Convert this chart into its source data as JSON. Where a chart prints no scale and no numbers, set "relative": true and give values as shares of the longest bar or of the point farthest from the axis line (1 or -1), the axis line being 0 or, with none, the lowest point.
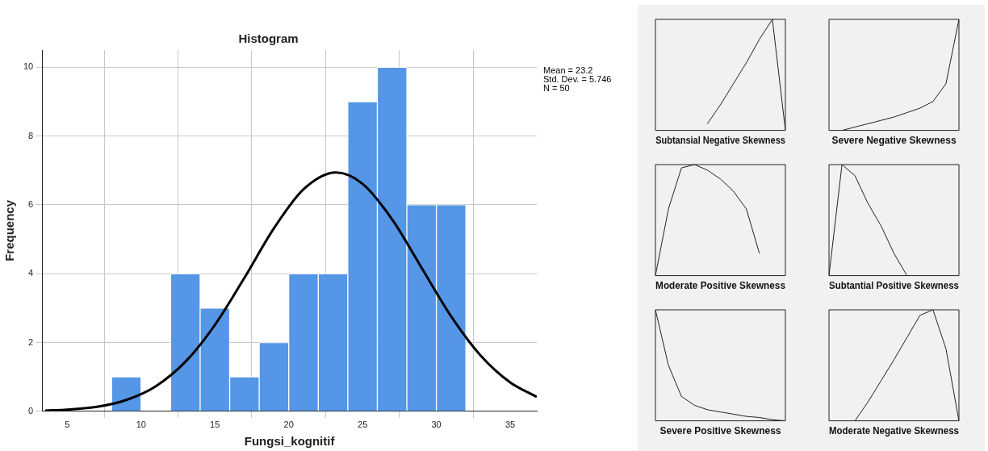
{
  "chart_data": [
    {
      "type": "histogram",
      "title": "Histogram",
      "xlabel": "Fungsi_kognitif",
      "ylabel": "Frequency",
      "annotations": [
        "Mean = 23.2",
        "Std. Dev. = 5.746",
        "N = 50"
      ],
      "bins": [
        8,
        10,
        12,
        14,
        16,
        18,
        20,
        22,
        24,
        26,
        28,
        30,
        32
      ],
      "values": [
        1,
        0,
        4,
        3,
        1,
        2,
        4,
        4,
        9,
        10,
        6,
        6
      ],
      "color": "#5596e6",
      "series": [
        {
          "type": "line",
          "color": "#000000",
          "x": [
            3.5,
            5,
            7,
            9,
            11,
            13,
            15,
            17,
            19,
            21,
            23.2,
            25,
            27,
            29,
            31,
            33,
            35,
            36.8
          ],
          "values": [
            0.02,
            0.05,
            0.13,
            0.33,
            0.73,
            1.44,
            2.51,
            3.88,
            5.32,
            6.45,
            6.94,
            6.61,
            5.58,
            4.17,
            2.76,
            1.62,
            0.84,
            0.42
          ]
        }
      ],
      "xlim": [
        3.3,
        36.8
      ],
      "xticks": [
        5,
        10,
        15,
        20,
        25,
        30,
        35
      ],
      "ylim": [
        0,
        10.5
      ],
      "yticks": [
        0,
        2,
        4,
        6,
        8,
        10
      ],
      "grid": true,
      "legend": false
    },
    {
      "type": "line",
      "relative": true,
      "title": "Subtansial Negative Skewness",
      "categories": [
        null,
        null,
        null,
        null,
        null,
        null,
        null,
        null,
        null,
        null,
        null
      ],
      "values": [
        null,
        null,
        null,
        null,
        0.06,
        0.23,
        0.42,
        0.61,
        0.82,
        1,
        0
      ],
      "color": "#222222"
    },
    {
      "type": "line",
      "relative": true,
      "title": "Severe Negative Skewness",
      "categories": [
        null,
        null,
        null,
        null,
        null,
        null,
        null,
        null,
        null,
        null,
        null
      ],
      "values": [
        null,
        0,
        0.03,
        0.06,
        0.09,
        0.12,
        0.16,
        0.2,
        0.26,
        0.42,
        1
      ],
      "color": "#222222"
    },
    {
      "type": "line",
      "relative": true,
      "title": "Moderate Positive Skewness",
      "categories": [
        null,
        null,
        null,
        null,
        null,
        null,
        null,
        null,
        null,
        null,
        null
      ],
      "values": [
        0,
        0.6,
        0.97,
        1,
        0.95,
        0.87,
        0.76,
        0.6,
        0.2,
        null,
        null
      ],
      "color": "#222222"
    },
    {
      "type": "line",
      "relative": true,
      "title": "Subtantial Positive Skewness",
      "categories": [
        null,
        null,
        null,
        null,
        null,
        null,
        null,
        null,
        null,
        null,
        null
      ],
      "values": [
        0,
        1,
        0.9,
        0.65,
        0.45,
        0.2,
        0,
        null,
        null,
        null,
        null
      ],
      "color": "#222222"
    },
    {
      "type": "line",
      "relative": true,
      "title": "Severe Positive Skewness",
      "categories": [
        null,
        null,
        null,
        null,
        null,
        null,
        null,
        null,
        null,
        null,
        null
      ],
      "values": [
        1,
        0.5,
        0.22,
        0.14,
        0.1,
        0.08,
        0.06,
        0.04,
        0.03,
        0.01,
        0
      ],
      "color": "#222222"
    },
    {
      "type": "line",
      "relative": true,
      "title": "Moderate Negative Skewness",
      "categories": [
        null,
        null,
        null,
        null,
        null,
        null,
        null,
        null,
        null,
        null,
        null
      ],
      "values": [
        null,
        null,
        0,
        0.17,
        0.36,
        0.55,
        0.75,
        0.95,
        1,
        0.65,
        0
      ],
      "color": "#222222"
    }
  ]
}
